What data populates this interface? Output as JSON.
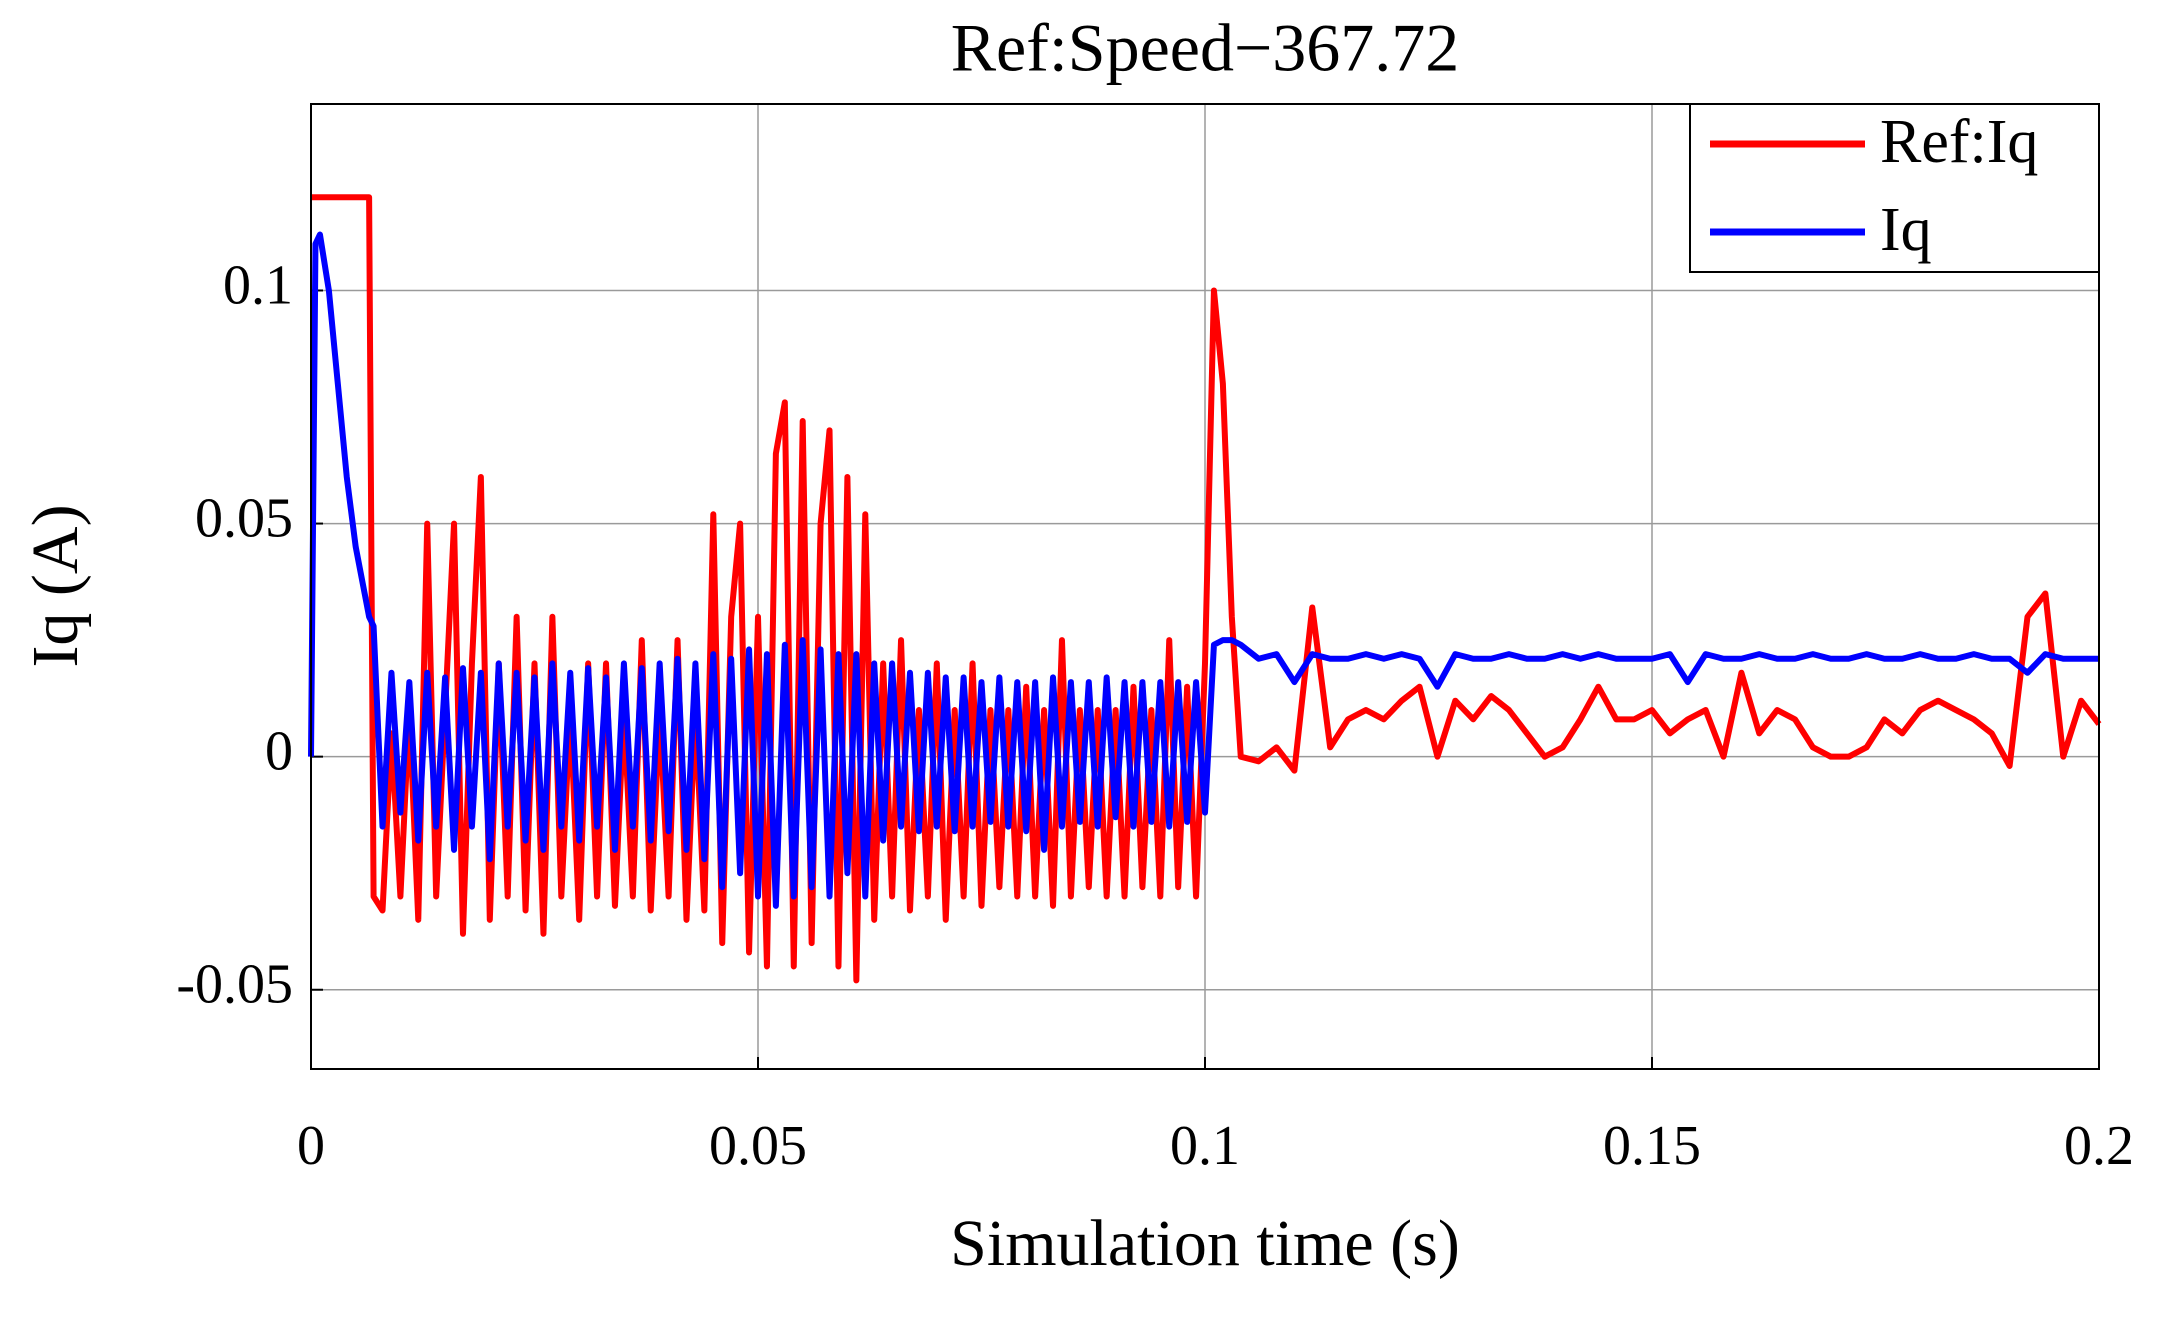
{
  "chart_data": {
    "type": "line",
    "title": "Ref:Speed−367.72",
    "x_label": "Simulation time (s)",
    "y_label": "Iq (A)",
    "xlim": [
      0,
      0.2
    ],
    "xticks": [
      0,
      0.05,
      0.1,
      0.15,
      0.2
    ],
    "ylim": [
      -0.067,
      0.14
    ],
    "yticks": [
      -0.05,
      0,
      0.05,
      0.1
    ],
    "grid": true,
    "legend": "upper right",
    "x": [
      0,
      0.0005,
      0.001,
      0.002,
      0.003,
      0.004,
      0.005,
      0.006,
      0.0065,
      0.007,
      0.008,
      0.009,
      0.01,
      0.011,
      0.012,
      0.013,
      0.014,
      0.015,
      0.016,
      0.017,
      0.018,
      0.019,
      0.02,
      0.021,
      0.022,
      0.023,
      0.024,
      0.025,
      0.026,
      0.027,
      0.028,
      0.029,
      0.03,
      0.031,
      0.032,
      0.033,
      0.034,
      0.035,
      0.036,
      0.037,
      0.038,
      0.039,
      0.04,
      0.041,
      0.042,
      0.043,
      0.044,
      0.045,
      0.046,
      0.047,
      0.048,
      0.049,
      0.05,
      0.051,
      0.052,
      0.053,
      0.054,
      0.055,
      0.056,
      0.057,
      0.058,
      0.059,
      0.06,
      0.061,
      0.062,
      0.063,
      0.064,
      0.065,
      0.066,
      0.067,
      0.068,
      0.069,
      0.07,
      0.071,
      0.072,
      0.073,
      0.074,
      0.075,
      0.076,
      0.077,
      0.078,
      0.079,
      0.08,
      0.081,
      0.082,
      0.083,
      0.084,
      0.085,
      0.086,
      0.087,
      0.088,
      0.089,
      0.09,
      0.091,
      0.092,
      0.093,
      0.094,
      0.095,
      0.096,
      0.097,
      0.098,
      0.099,
      0.1,
      0.101,
      0.102,
      0.103,
      0.104,
      0.106,
      0.108,
      0.11,
      0.112,
      0.114,
      0.116,
      0.118,
      0.12,
      0.122,
      0.124,
      0.126,
      0.128,
      0.13,
      0.132,
      0.134,
      0.136,
      0.138,
      0.14,
      0.142,
      0.144,
      0.146,
      0.148,
      0.15,
      0.152,
      0.154,
      0.156,
      0.158,
      0.16,
      0.162,
      0.164,
      0.166,
      0.168,
      0.17,
      0.172,
      0.174,
      0.176,
      0.178,
      0.18,
      0.182,
      0.184,
      0.186,
      0.188,
      0.19,
      0.192,
      0.194,
      0.196,
      0.198,
      0.2
    ],
    "series": [
      {
        "name": "Ref:Iq",
        "color": "#ff0000",
        "values": [
          0.12,
          0.12,
          0.12,
          0.12,
          0.12,
          0.12,
          0.12,
          0.12,
          0.12,
          -0.03,
          -0.033,
          0.005,
          -0.03,
          0.01,
          -0.035,
          0.05,
          -0.03,
          0.01,
          0.05,
          -0.038,
          0.02,
          0.06,
          -0.035,
          0.02,
          -0.03,
          0.03,
          -0.033,
          0.02,
          -0.038,
          0.03,
          -0.03,
          0.01,
          -0.035,
          0.02,
          -0.03,
          0.02,
          -0.032,
          0.01,
          -0.03,
          0.025,
          -0.033,
          0.01,
          -0.03,
          0.025,
          -0.035,
          0.01,
          -0.033,
          0.052,
          -0.04,
          0.03,
          0.05,
          -0.042,
          0.03,
          -0.045,
          0.065,
          0.076,
          -0.045,
          0.072,
          -0.04,
          0.05,
          0.07,
          -0.045,
          0.06,
          -0.048,
          0.052,
          -0.035,
          0.02,
          -0.03,
          0.025,
          -0.033,
          0.01,
          -0.03,
          0.02,
          -0.035,
          0.01,
          -0.03,
          0.02,
          -0.032,
          0.01,
          -0.028,
          0.01,
          -0.03,
          0.015,
          -0.03,
          0.01,
          -0.032,
          0.025,
          -0.03,
          0.01,
          -0.028,
          0.01,
          -0.03,
          0.01,
          -0.03,
          0.015,
          -0.028,
          0.01,
          -0.03,
          0.025,
          -0.028,
          0.015,
          -0.03,
          0.02,
          0.1,
          0.08,
          0.03,
          0.0,
          -0.001,
          0.002,
          -0.003,
          0.032,
          0.002,
          0.008,
          0.01,
          0.008,
          0.012,
          0.015,
          0.0,
          0.012,
          0.008,
          0.013,
          0.01,
          0.005,
          0.0,
          0.002,
          0.008,
          0.015,
          0.008,
          0.008,
          0.01,
          0.005,
          0.008,
          0.01,
          0.0,
          0.018,
          0.005,
          0.01,
          0.008,
          0.002,
          0.0,
          0.0,
          0.002,
          0.008,
          0.005,
          0.01,
          0.012,
          0.01,
          0.008,
          0.005,
          -0.002,
          0.03,
          0.035,
          0.0,
          0.012,
          0.007
        ]
      },
      {
        "name": "Iq",
        "color": "#0000ff",
        "values": [
          0,
          0.11,
          0.112,
          0.1,
          0.08,
          0.06,
          0.045,
          0.035,
          0.03,
          0.028,
          -0.015,
          0.018,
          -0.012,
          0.016,
          -0.018,
          0.018,
          -0.015,
          0.017,
          -0.02,
          0.019,
          -0.015,
          0.018,
          -0.022,
          0.02,
          -0.015,
          0.018,
          -0.018,
          0.017,
          -0.02,
          0.02,
          -0.015,
          0.018,
          -0.018,
          0.019,
          -0.015,
          0.017,
          -0.02,
          0.02,
          -0.015,
          0.019,
          -0.018,
          0.02,
          -0.016,
          0.021,
          -0.02,
          0.02,
          -0.022,
          0.022,
          -0.028,
          0.021,
          -0.025,
          0.023,
          -0.03,
          0.022,
          -0.032,
          0.024,
          -0.03,
          0.025,
          -0.028,
          0.023,
          -0.03,
          0.022,
          -0.025,
          0.022,
          -0.03,
          0.02,
          -0.018,
          0.02,
          -0.015,
          0.018,
          -0.016,
          0.018,
          -0.015,
          0.017,
          -0.016,
          0.017,
          -0.015,
          0.016,
          -0.014,
          0.017,
          -0.015,
          0.016,
          -0.016,
          0.016,
          -0.02,
          0.017,
          -0.015,
          0.016,
          -0.014,
          0.016,
          -0.015,
          0.017,
          -0.013,
          0.016,
          -0.015,
          0.016,
          -0.014,
          0.016,
          -0.015,
          0.016,
          -0.014,
          0.016,
          -0.012,
          0.024,
          0.025,
          0.025,
          0.024,
          0.021,
          0.022,
          0.016,
          0.022,
          0.021,
          0.021,
          0.022,
          0.021,
          0.022,
          0.021,
          0.015,
          0.022,
          0.021,
          0.021,
          0.022,
          0.021,
          0.021,
          0.022,
          0.021,
          0.022,
          0.021,
          0.021,
          0.021,
          0.022,
          0.016,
          0.022,
          0.021,
          0.021,
          0.022,
          0.021,
          0.021,
          0.022,
          0.021,
          0.021,
          0.022,
          0.021,
          0.021,
          0.022,
          0.021,
          0.021,
          0.022,
          0.021,
          0.021,
          0.018,
          0.022,
          0.021,
          0.021,
          0.021
        ]
      }
    ]
  }
}
